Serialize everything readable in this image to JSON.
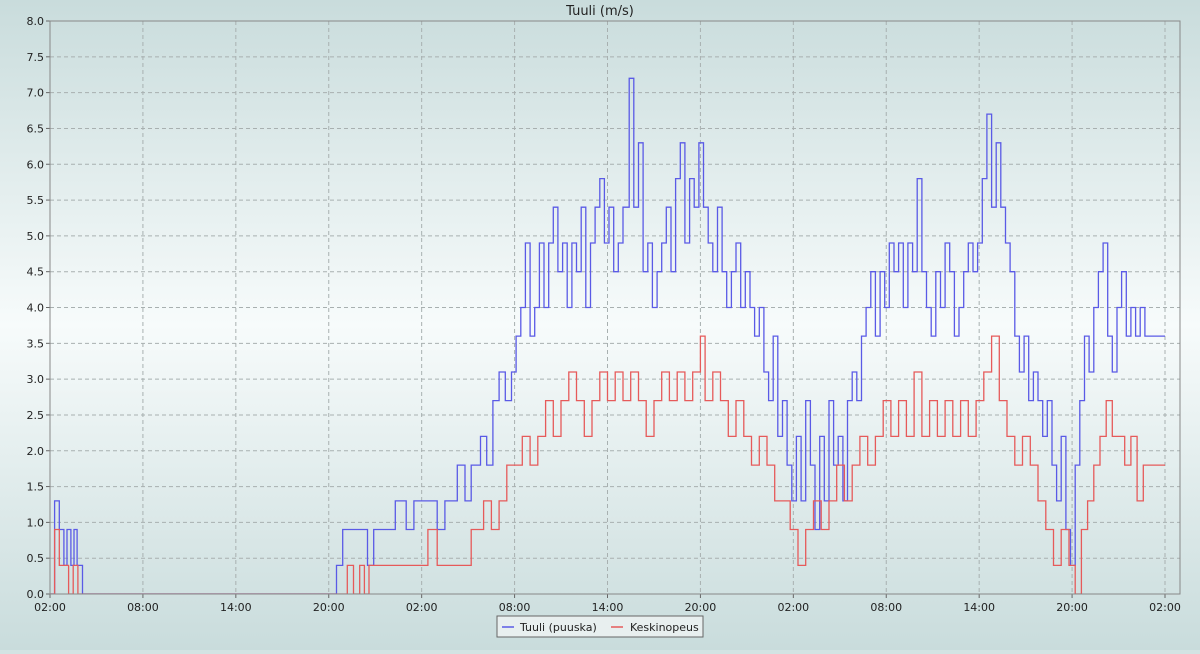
{
  "chart_data": {
    "type": "line",
    "title": "Tuuli (m/s)",
    "xlabel": "",
    "ylabel": "",
    "ylim": [
      0,
      8
    ],
    "xlim_hours": [
      0,
      72
    ],
    "grid": true,
    "legend_position": "bottom-center",
    "y_ticks": [
      "0.0",
      "0.5",
      "1.0",
      "1.5",
      "2.0",
      "2.5",
      "3.0",
      "3.5",
      "4.0",
      "4.5",
      "5.0",
      "5.5",
      "6.0",
      "6.5",
      "7.0",
      "7.5",
      "8.0"
    ],
    "x_ticks": [
      {
        "label": "02:00",
        "hour": 0
      },
      {
        "label": "08:00",
        "hour": 6
      },
      {
        "label": "14:00",
        "hour": 12
      },
      {
        "label": "20:00",
        "hour": 18
      },
      {
        "label": "02:00",
        "hour": 24
      },
      {
        "label": "08:00",
        "hour": 30
      },
      {
        "label": "14:00",
        "hour": 36
      },
      {
        "label": "20:00",
        "hour": 42
      },
      {
        "label": "02:00",
        "hour": 48
      },
      {
        "label": "08:00",
        "hour": 54
      },
      {
        "label": "14:00",
        "hour": 60
      },
      {
        "label": "20:00",
        "hour": 66
      },
      {
        "label": "02:00",
        "hour": 72
      }
    ],
    "series": [
      {
        "name": "Tuuli (puuska)",
        "color": "#5a5ae6",
        "points": [
          [
            0,
            0
          ],
          [
            0.3,
            1.3
          ],
          [
            0.6,
            0.9
          ],
          [
            0.9,
            0.4
          ],
          [
            1.1,
            0.9
          ],
          [
            1.35,
            0.4
          ],
          [
            1.55,
            0.9
          ],
          [
            1.75,
            0.4
          ],
          [
            2.1,
            0
          ],
          [
            18,
            0
          ],
          [
            18.5,
            0.4
          ],
          [
            18.9,
            0.9
          ],
          [
            19.5,
            0.9
          ],
          [
            20.1,
            0.9
          ],
          [
            20.5,
            0.4
          ],
          [
            20.9,
            0.9
          ],
          [
            21.5,
            0.9
          ],
          [
            22.3,
            1.3
          ],
          [
            23,
            0.9
          ],
          [
            23.5,
            1.3
          ],
          [
            24.3,
            1.3
          ],
          [
            25,
            0.9
          ],
          [
            25.5,
            1.3
          ],
          [
            26,
            1.3
          ],
          [
            26.3,
            1.8
          ],
          [
            26.8,
            1.3
          ],
          [
            27.2,
            1.8
          ],
          [
            27.8,
            2.2
          ],
          [
            28.2,
            1.8
          ],
          [
            28.6,
            2.7
          ],
          [
            29,
            3.1
          ],
          [
            29.4,
            2.7
          ],
          [
            29.8,
            3.1
          ],
          [
            30.1,
            3.6
          ],
          [
            30.4,
            4.0
          ],
          [
            30.7,
            4.9
          ],
          [
            31,
            3.6
          ],
          [
            31.3,
            4.0
          ],
          [
            31.6,
            4.9
          ],
          [
            31.9,
            4.0
          ],
          [
            32.2,
            4.9
          ],
          [
            32.5,
            5.4
          ],
          [
            32.8,
            4.5
          ],
          [
            33.1,
            4.9
          ],
          [
            33.4,
            4.0
          ],
          [
            33.7,
            4.9
          ],
          [
            34,
            4.5
          ],
          [
            34.3,
            5.4
          ],
          [
            34.6,
            4.0
          ],
          [
            34.9,
            4.9
          ],
          [
            35.2,
            5.4
          ],
          [
            35.5,
            5.8
          ],
          [
            35.8,
            4.9
          ],
          [
            36.1,
            5.4
          ],
          [
            36.4,
            4.5
          ],
          [
            36.7,
            4.9
          ],
          [
            37,
            5.4
          ],
          [
            37.4,
            7.2
          ],
          [
            37.7,
            5.4
          ],
          [
            38,
            6.3
          ],
          [
            38.3,
            4.5
          ],
          [
            38.6,
            4.9
          ],
          [
            38.9,
            4.0
          ],
          [
            39.2,
            4.5
          ],
          [
            39.5,
            4.9
          ],
          [
            39.8,
            5.4
          ],
          [
            40.1,
            4.5
          ],
          [
            40.4,
            5.8
          ],
          [
            40.7,
            6.3
          ],
          [
            41,
            4.9
          ],
          [
            41.3,
            5.8
          ],
          [
            41.6,
            5.4
          ],
          [
            41.9,
            6.3
          ],
          [
            42.2,
            5.4
          ],
          [
            42.5,
            4.9
          ],
          [
            42.8,
            4.5
          ],
          [
            43.1,
            5.4
          ],
          [
            43.4,
            4.5
          ],
          [
            43.7,
            4.0
          ],
          [
            44,
            4.5
          ],
          [
            44.3,
            4.9
          ],
          [
            44.6,
            4.0
          ],
          [
            44.9,
            4.5
          ],
          [
            45.2,
            4.0
          ],
          [
            45.5,
            3.6
          ],
          [
            45.8,
            4.0
          ],
          [
            46.1,
            3.1
          ],
          [
            46.4,
            2.7
          ],
          [
            46.7,
            3.6
          ],
          [
            47,
            2.2
          ],
          [
            47.3,
            2.7
          ],
          [
            47.6,
            1.8
          ],
          [
            47.9,
            1.3
          ],
          [
            48.2,
            2.2
          ],
          [
            48.5,
            1.3
          ],
          [
            48.8,
            2.7
          ],
          [
            49.1,
            1.8
          ],
          [
            49.4,
            0.9
          ],
          [
            49.7,
            2.2
          ],
          [
            50,
            1.3
          ],
          [
            50.3,
            2.7
          ],
          [
            50.6,
            1.8
          ],
          [
            50.9,
            2.2
          ],
          [
            51.2,
            1.3
          ],
          [
            51.5,
            2.7
          ],
          [
            51.8,
            3.1
          ],
          [
            52.1,
            2.7
          ],
          [
            52.4,
            3.6
          ],
          [
            52.7,
            4.0
          ],
          [
            53,
            4.5
          ],
          [
            53.3,
            3.6
          ],
          [
            53.6,
            4.5
          ],
          [
            53.9,
            4.0
          ],
          [
            54.2,
            4.9
          ],
          [
            54.5,
            4.5
          ],
          [
            54.8,
            4.9
          ],
          [
            55.1,
            4.0
          ],
          [
            55.4,
            4.9
          ],
          [
            55.7,
            4.5
          ],
          [
            56,
            5.8
          ],
          [
            56.3,
            4.5
          ],
          [
            56.6,
            4.0
          ],
          [
            56.9,
            3.6
          ],
          [
            57.2,
            4.5
          ],
          [
            57.5,
            4.0
          ],
          [
            57.8,
            4.9
          ],
          [
            58.1,
            4.5
          ],
          [
            58.4,
            3.6
          ],
          [
            58.7,
            4.0
          ],
          [
            59,
            4.5
          ],
          [
            59.3,
            4.9
          ],
          [
            59.6,
            4.5
          ],
          [
            59.9,
            4.9
          ],
          [
            60.2,
            5.8
          ],
          [
            60.5,
            6.7
          ],
          [
            60.8,
            5.4
          ],
          [
            61.1,
            6.3
          ],
          [
            61.4,
            5.4
          ],
          [
            61.7,
            4.9
          ],
          [
            62,
            4.5
          ],
          [
            62.3,
            3.6
          ],
          [
            62.6,
            3.1
          ],
          [
            62.9,
            3.6
          ],
          [
            63.2,
            2.7
          ],
          [
            63.5,
            3.1
          ],
          [
            63.8,
            2.7
          ],
          [
            64.1,
            2.2
          ],
          [
            64.4,
            2.7
          ],
          [
            64.7,
            1.8
          ],
          [
            65,
            1.3
          ],
          [
            65.3,
            2.2
          ],
          [
            65.6,
            0.9
          ],
          [
            65.9,
            0.4
          ],
          [
            66.2,
            1.8
          ],
          [
            66.5,
            2.7
          ],
          [
            66.8,
            3.6
          ],
          [
            67.1,
            3.1
          ],
          [
            67.4,
            4.0
          ],
          [
            67.7,
            4.5
          ],
          [
            68,
            4.9
          ],
          [
            68.3,
            3.6
          ],
          [
            68.6,
            3.1
          ],
          [
            68.9,
            4.0
          ],
          [
            69.2,
            4.5
          ],
          [
            69.5,
            3.6
          ],
          [
            69.8,
            4.0
          ],
          [
            70.1,
            3.6
          ],
          [
            70.4,
            4.0
          ],
          [
            70.7,
            3.6
          ],
          [
            72,
            3.6
          ]
        ]
      },
      {
        "name": "Keskinopeus",
        "color": "#e65a5a",
        "points": [
          [
            0,
            0
          ],
          [
            0.3,
            0.9
          ],
          [
            0.6,
            0.4
          ],
          [
            0.9,
            0.4
          ],
          [
            1.2,
            0
          ],
          [
            1.5,
            0.4
          ],
          [
            1.8,
            0
          ],
          [
            2.1,
            0
          ],
          [
            18,
            0
          ],
          [
            19.2,
            0.4
          ],
          [
            19.6,
            0
          ],
          [
            20,
            0.4
          ],
          [
            20.3,
            0
          ],
          [
            20.6,
            0.4
          ],
          [
            21.5,
            0.4
          ],
          [
            24,
            0.4
          ],
          [
            24.4,
            0.9
          ],
          [
            25,
            0.4
          ],
          [
            26.5,
            0.4
          ],
          [
            27.2,
            0.9
          ],
          [
            28,
            1.3
          ],
          [
            28.5,
            0.9
          ],
          [
            29,
            1.3
          ],
          [
            29.5,
            1.8
          ],
          [
            30,
            1.8
          ],
          [
            30.5,
            2.2
          ],
          [
            31,
            1.8
          ],
          [
            31.5,
            2.2
          ],
          [
            32,
            2.7
          ],
          [
            32.5,
            2.2
          ],
          [
            33,
            2.7
          ],
          [
            33.5,
            3.1
          ],
          [
            34,
            2.7
          ],
          [
            34.5,
            2.2
          ],
          [
            35,
            2.7
          ],
          [
            35.5,
            3.1
          ],
          [
            36,
            2.7
          ],
          [
            36.5,
            3.1
          ],
          [
            37,
            2.7
          ],
          [
            37.5,
            3.1
          ],
          [
            38,
            2.7
          ],
          [
            38.5,
            2.2
          ],
          [
            39,
            2.7
          ],
          [
            39.5,
            3.1
          ],
          [
            40,
            2.7
          ],
          [
            40.5,
            3.1
          ],
          [
            41,
            2.7
          ],
          [
            41.5,
            3.1
          ],
          [
            42,
            3.6
          ],
          [
            42.3,
            2.7
          ],
          [
            42.8,
            3.1
          ],
          [
            43.3,
            2.7
          ],
          [
            43.8,
            2.2
          ],
          [
            44.3,
            2.7
          ],
          [
            44.8,
            2.2
          ],
          [
            45.3,
            1.8
          ],
          [
            45.8,
            2.2
          ],
          [
            46.3,
            1.8
          ],
          [
            46.8,
            1.3
          ],
          [
            47.3,
            1.3
          ],
          [
            47.8,
            0.9
          ],
          [
            48.3,
            0.4
          ],
          [
            48.8,
            0.9
          ],
          [
            49.3,
            1.3
          ],
          [
            49.8,
            0.9
          ],
          [
            50.3,
            1.3
          ],
          [
            50.8,
            1.8
          ],
          [
            51.3,
            1.3
          ],
          [
            51.8,
            1.8
          ],
          [
            52.3,
            2.2
          ],
          [
            52.8,
            1.8
          ],
          [
            53.3,
            2.2
          ],
          [
            53.8,
            2.7
          ],
          [
            54.3,
            2.2
          ],
          [
            54.8,
            2.7
          ],
          [
            55.3,
            2.2
          ],
          [
            55.8,
            3.1
          ],
          [
            56.3,
            2.2
          ],
          [
            56.8,
            2.7
          ],
          [
            57.3,
            2.2
          ],
          [
            57.8,
            2.7
          ],
          [
            58.3,
            2.2
          ],
          [
            58.8,
            2.7
          ],
          [
            59.3,
            2.2
          ],
          [
            59.8,
            2.7
          ],
          [
            60.3,
            3.1
          ],
          [
            60.8,
            3.6
          ],
          [
            61.3,
            2.7
          ],
          [
            61.8,
            2.2
          ],
          [
            62.3,
            1.8
          ],
          [
            62.8,
            2.2
          ],
          [
            63.3,
            1.8
          ],
          [
            63.8,
            1.3
          ],
          [
            64.3,
            0.9
          ],
          [
            64.8,
            0.4
          ],
          [
            65.3,
            0.9
          ],
          [
            65.8,
            0.4
          ],
          [
            66.2,
            0
          ],
          [
            66.6,
            0.9
          ],
          [
            67,
            1.3
          ],
          [
            67.4,
            1.8
          ],
          [
            67.8,
            2.2
          ],
          [
            68.2,
            2.7
          ],
          [
            68.6,
            2.2
          ],
          [
            69,
            2.2
          ],
          [
            69.4,
            1.8
          ],
          [
            69.8,
            2.2
          ],
          [
            70.2,
            1.3
          ],
          [
            70.6,
            1.8
          ],
          [
            72,
            1.8
          ]
        ]
      }
    ]
  }
}
